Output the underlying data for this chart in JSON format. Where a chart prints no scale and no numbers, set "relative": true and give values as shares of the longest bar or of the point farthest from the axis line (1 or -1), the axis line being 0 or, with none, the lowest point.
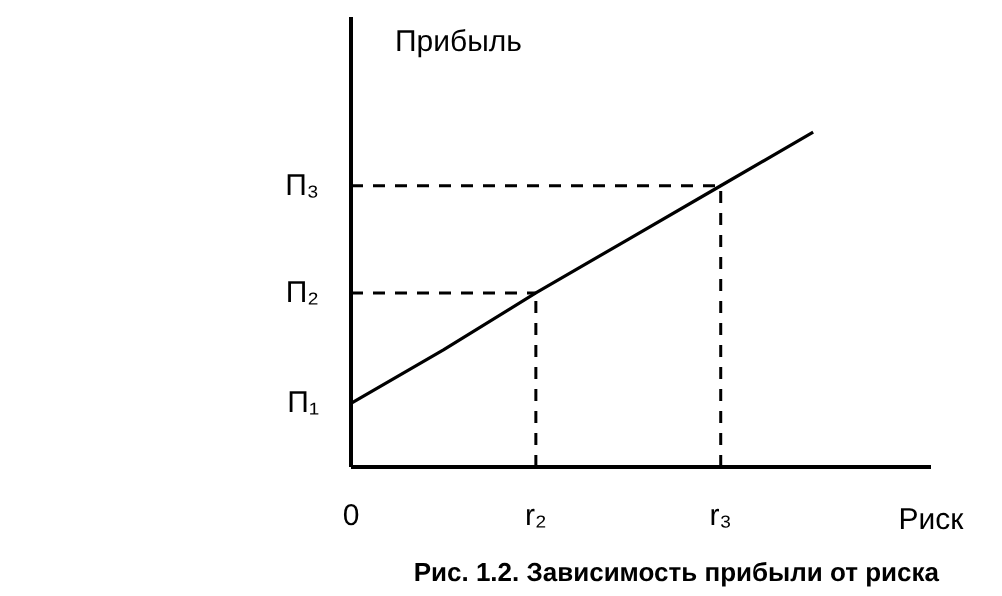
{
  "chart_data": {
    "type": "line",
    "relative": true,
    "xlabel": "Риск",
    "ylabel": "Прибыль",
    "annotations": [
      "Рис. 1.2. Зависимость прибыли от риска",
      {
        "text": "П₁",
        "x": "0",
        "y": 0.19
      }
    ],
    "categories": [
      "0",
      null,
      "r₂",
      null,
      "r₃",
      null
    ],
    "series": [
      {
        "color": "#000000",
        "values": [
          0.19,
          0.35,
          0.52,
          0.68,
          0.84,
          1.0
        ]
      }
    ],
    "ref_lines": [
      {
        "axis": "y",
        "value": 0.52,
        "label": "П₂",
        "line_style": "dashed"
      },
      {
        "axis": "y",
        "value": 0.84,
        "label": "П₃",
        "line_style": "dashed"
      },
      {
        "axis": "x",
        "value": "r₂",
        "line_style": "dashed"
      },
      {
        "axis": "x",
        "value": "r₃",
        "line_style": "dashed"
      }
    ],
    "line_style": "solid"
  }
}
